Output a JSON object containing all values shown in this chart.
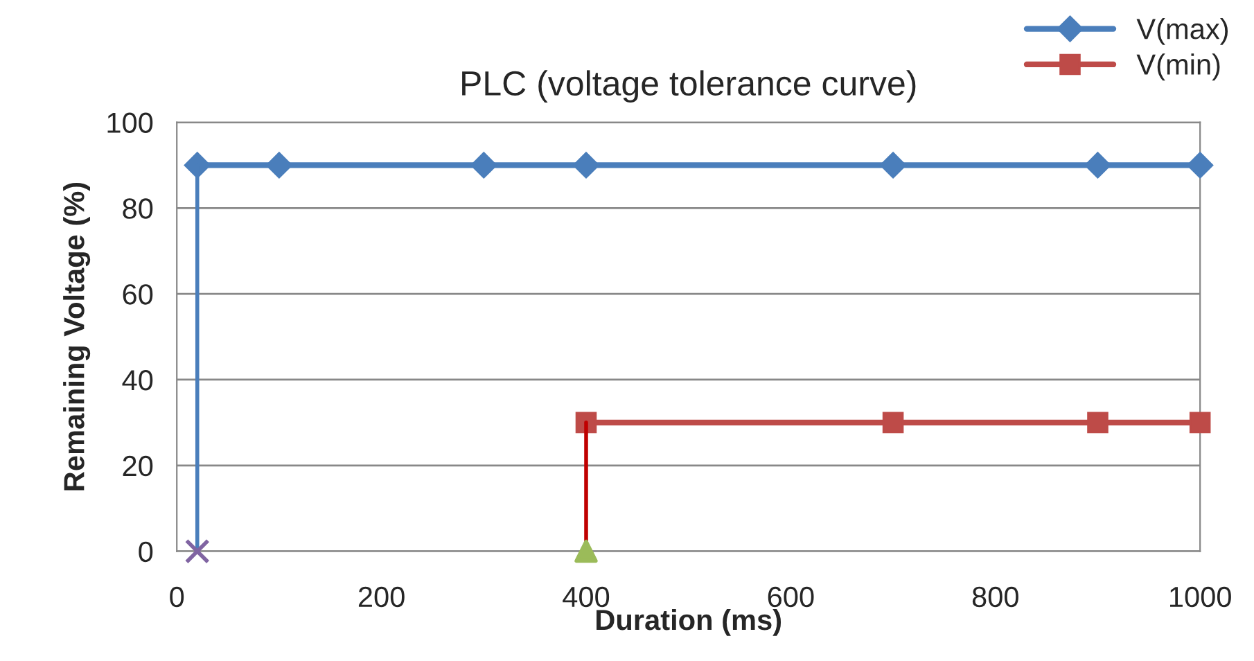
{
  "chart_data": {
    "type": "line",
    "title": "PLC (voltage tolerance curve)",
    "xlabel": "Duration (ms)",
    "ylabel": "Remaining Voltage (%)",
    "series": [
      {
        "name": "V(max)",
        "color": "#4a7ebb",
        "x": [
          20,
          100,
          300,
          400,
          700,
          900,
          1000
        ],
        "values": [
          90,
          90,
          90,
          90,
          90,
          90,
          90
        ],
        "marker": "diamond"
      },
      {
        "name": "V(min)",
        "color": "#be4b48",
        "x": [
          400,
          700,
          900,
          1000
        ],
        "values": [
          30,
          30,
          30,
          30
        ],
        "marker": "square"
      },
      {
        "color": "#4a7ebb",
        "x": [
          20,
          20
        ],
        "values": [
          0,
          90
        ],
        "marker": "none"
      },
      {
        "color": "#c00000",
        "x": [
          400,
          400
        ],
        "values": [
          0,
          30
        ],
        "marker": "none"
      },
      {
        "type": "scatter",
        "color": "#8064a2",
        "x": [
          20
        ],
        "values": [
          0
        ],
        "marker": "cross"
      },
      {
        "type": "scatter",
        "color": "#9bbb59",
        "x": [
          400
        ],
        "values": [
          0
        ],
        "marker": "triangle"
      }
    ],
    "xlim": [
      0,
      1000
    ],
    "xticks": [
      0,
      200,
      400,
      600,
      800,
      1000
    ],
    "ylim": [
      0,
      100
    ],
    "yticks": [
      0,
      20,
      40,
      60,
      80,
      100
    ],
    "grid": "y",
    "legend": "top right"
  }
}
